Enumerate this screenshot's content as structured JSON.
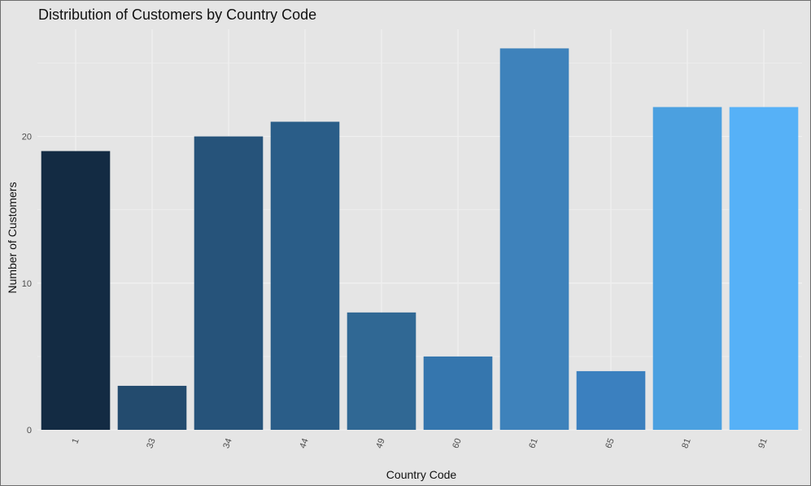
{
  "chart_data": {
    "type": "bar",
    "title": "Distribution of Customers by Country Code",
    "xlabel": "Country Code",
    "ylabel": "Number of Customers",
    "categories": [
      "1",
      "33",
      "34",
      "44",
      "49",
      "60",
      "61",
      "65",
      "81",
      "91"
    ],
    "values": [
      19,
      3,
      20,
      21,
      8,
      5,
      26,
      4,
      22,
      22
    ],
    "colors": [
      "#132b43",
      "#234b6e",
      "#26537a",
      "#2a5d88",
      "#306894",
      "#3576ae",
      "#3e82bb",
      "#3b80bf",
      "#4ba0e0",
      "#56b1f7"
    ],
    "ylim": [
      0,
      27.3
    ],
    "yticks": [
      0,
      10,
      20
    ],
    "grid": true,
    "background": "#e5e5e5",
    "gridline_color": "#f0f0f0",
    "legend": "none"
  }
}
